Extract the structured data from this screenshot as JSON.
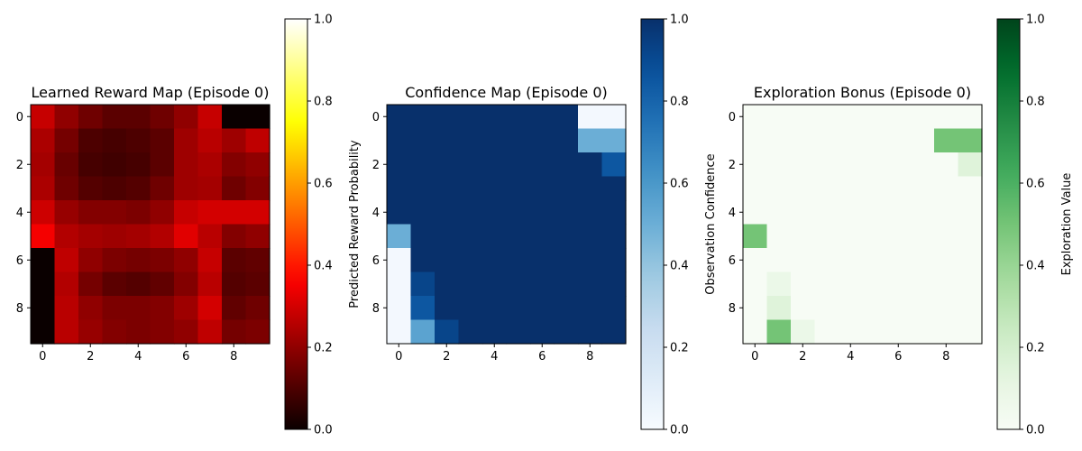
{
  "chart_data": [
    {
      "type": "heatmap",
      "title": "Learned Reward Map (Episode 0)",
      "colormap": "hot",
      "colorbar_label": "Predicted Reward Probability",
      "clim": [
        0,
        1
      ],
      "colorbar_ticks": [
        "0.0",
        "0.2",
        "0.4",
        "0.6",
        "0.8",
        "1.0"
      ],
      "xticks": [
        "0",
        "2",
        "4",
        "6",
        "8"
      ],
      "yticks": [
        "0",
        "2",
        "4",
        "6",
        "8"
      ],
      "grid": [
        [
          0.28,
          0.2,
          0.15,
          0.12,
          0.12,
          0.15,
          0.2,
          0.28,
          0.0,
          0.0
        ],
        [
          0.24,
          0.16,
          0.1,
          0.09,
          0.1,
          0.12,
          0.22,
          0.26,
          0.22,
          0.27
        ],
        [
          0.23,
          0.14,
          0.09,
          0.08,
          0.09,
          0.12,
          0.22,
          0.24,
          0.18,
          0.2
        ],
        [
          0.24,
          0.15,
          0.11,
          0.1,
          0.11,
          0.15,
          0.22,
          0.23,
          0.15,
          0.18
        ],
        [
          0.29,
          0.21,
          0.18,
          0.18,
          0.17,
          0.2,
          0.28,
          0.3,
          0.3,
          0.3
        ],
        [
          0.35,
          0.25,
          0.23,
          0.22,
          0.23,
          0.25,
          0.32,
          0.26,
          0.18,
          0.2
        ],
        [
          0.0,
          0.27,
          0.2,
          0.17,
          0.16,
          0.17,
          0.2,
          0.28,
          0.12,
          0.13
        ],
        [
          0.0,
          0.25,
          0.16,
          0.12,
          0.11,
          0.13,
          0.18,
          0.26,
          0.11,
          0.12
        ],
        [
          0.0,
          0.26,
          0.2,
          0.17,
          0.17,
          0.18,
          0.22,
          0.3,
          0.13,
          0.15
        ],
        [
          0.0,
          0.26,
          0.21,
          0.18,
          0.17,
          0.18,
          0.2,
          0.27,
          0.16,
          0.17
        ]
      ]
    },
    {
      "type": "heatmap",
      "title": "Confidence Map (Episode 0)",
      "colormap": "Blues",
      "colorbar_label": "Observation Confidence",
      "clim": [
        0,
        1
      ],
      "colorbar_ticks": [
        "0.0",
        "0.2",
        "0.4",
        "0.6",
        "0.8",
        "1.0"
      ],
      "xticks": [
        "0",
        "2",
        "4",
        "6",
        "8"
      ],
      "yticks": [
        "0",
        "2",
        "4",
        "6",
        "8"
      ],
      "grid": [
        [
          1,
          1,
          1,
          1,
          1,
          1,
          1,
          1,
          0.02,
          0.02
        ],
        [
          1,
          1,
          1,
          1,
          1,
          1,
          1,
          1,
          0.5,
          0.5
        ],
        [
          1,
          1,
          1,
          1,
          1,
          1,
          1,
          1,
          1,
          0.85
        ],
        [
          1,
          1,
          1,
          1,
          1,
          1,
          1,
          1,
          1,
          1
        ],
        [
          1,
          1,
          1,
          1,
          1,
          1,
          1,
          1,
          1,
          1
        ],
        [
          0.5,
          1,
          1,
          1,
          1,
          1,
          1,
          1,
          1,
          1
        ],
        [
          0.02,
          1,
          1,
          1,
          1,
          1,
          1,
          1,
          1,
          1
        ],
        [
          0.02,
          0.92,
          1,
          1,
          1,
          1,
          1,
          1,
          1,
          1
        ],
        [
          0.02,
          0.85,
          1,
          1,
          1,
          1,
          1,
          1,
          1,
          1
        ],
        [
          0.02,
          0.55,
          0.92,
          1,
          1,
          1,
          1,
          1,
          1,
          1
        ]
      ]
    },
    {
      "type": "heatmap",
      "title": "Exploration Bonus (Episode 0)",
      "colormap": "Greens",
      "colorbar_label": "Exploration Value",
      "clim": [
        0,
        1
      ],
      "colorbar_ticks": [
        "0.0",
        "0.2",
        "0.4",
        "0.6",
        "0.8",
        "1.0"
      ],
      "xticks": [
        "0",
        "2",
        "4",
        "6",
        "8"
      ],
      "yticks": [
        "0",
        "2",
        "4",
        "6",
        "8"
      ],
      "grid": [
        [
          0,
          0,
          0,
          0,
          0,
          0,
          0,
          0,
          0,
          0
        ],
        [
          0,
          0,
          0,
          0,
          0,
          0,
          0,
          0,
          0.5,
          0.5
        ],
        [
          0,
          0,
          0,
          0,
          0,
          0,
          0,
          0,
          0,
          0.15
        ],
        [
          0,
          0,
          0,
          0,
          0,
          0,
          0,
          0,
          0,
          0
        ],
        [
          0,
          0,
          0,
          0,
          0,
          0,
          0,
          0,
          0,
          0
        ],
        [
          0.5,
          0,
          0,
          0,
          0,
          0,
          0,
          0,
          0,
          0
        ],
        [
          0,
          0,
          0,
          0,
          0,
          0,
          0,
          0,
          0,
          0
        ],
        [
          0,
          0.08,
          0,
          0,
          0,
          0,
          0,
          0,
          0,
          0
        ],
        [
          0,
          0.15,
          0,
          0,
          0,
          0,
          0,
          0,
          0,
          0
        ],
        [
          0,
          0.5,
          0.08,
          0,
          0,
          0,
          0,
          0,
          0,
          0
        ]
      ]
    }
  ]
}
